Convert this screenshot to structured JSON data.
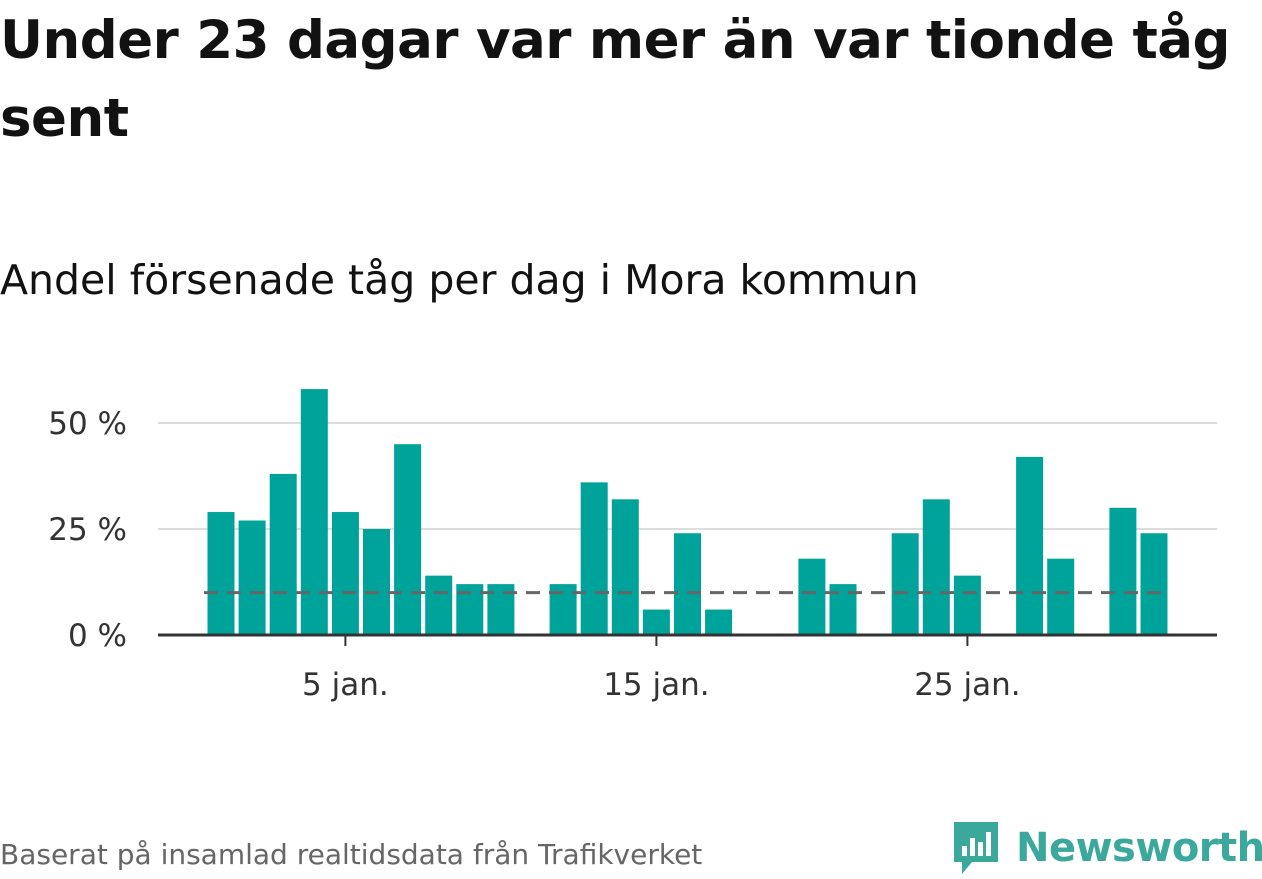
{
  "title": "Under 23 dagar var mer än var tionde tåg sent",
  "subtitle": "Andel försenade tåg per dag i Mora kommun",
  "footer": "Baserat på insamlad realtidsdata från Trafikverket",
  "brand": "Newsworthy",
  "colors": {
    "bar": "#00a399",
    "reference_line": "#666666",
    "grid": "#dddddd",
    "axis": "#333333",
    "brand": "#3aa89b"
  },
  "chart_data": {
    "type": "bar",
    "x": [
      "1 jan.",
      "2 jan.",
      "3 jan.",
      "4 jan.",
      "5 jan.",
      "6 jan.",
      "7 jan.",
      "8 jan.",
      "9 jan.",
      "10 jan.",
      "11 jan.",
      "12 jan.",
      "13 jan.",
      "14 jan.",
      "15 jan.",
      "16 jan.",
      "17 jan.",
      "18 jan.",
      "19 jan.",
      "20 jan.",
      "21 jan.",
      "22 jan.",
      "23 jan.",
      "24 jan.",
      "25 jan.",
      "26 jan.",
      "27 jan.",
      "28 jan.",
      "29 jan.",
      "30 jan.",
      "31 jan."
    ],
    "values": [
      29,
      27,
      38,
      58,
      29,
      25,
      45,
      14,
      12,
      12,
      null,
      12,
      36,
      32,
      6,
      24,
      6,
      null,
      null,
      18,
      12,
      null,
      24,
      32,
      14,
      null,
      42,
      18,
      null,
      30,
      24
    ],
    "reference_line": 10,
    "ylim": [
      0,
      60
    ],
    "yticks": [
      0,
      25,
      50
    ],
    "ytick_labels": [
      "0 %",
      "25 %",
      "50 %"
    ],
    "xticks": [
      "5 jan.",
      "15 jan.",
      "25 jan."
    ],
    "grid": true,
    "legend": "none"
  }
}
